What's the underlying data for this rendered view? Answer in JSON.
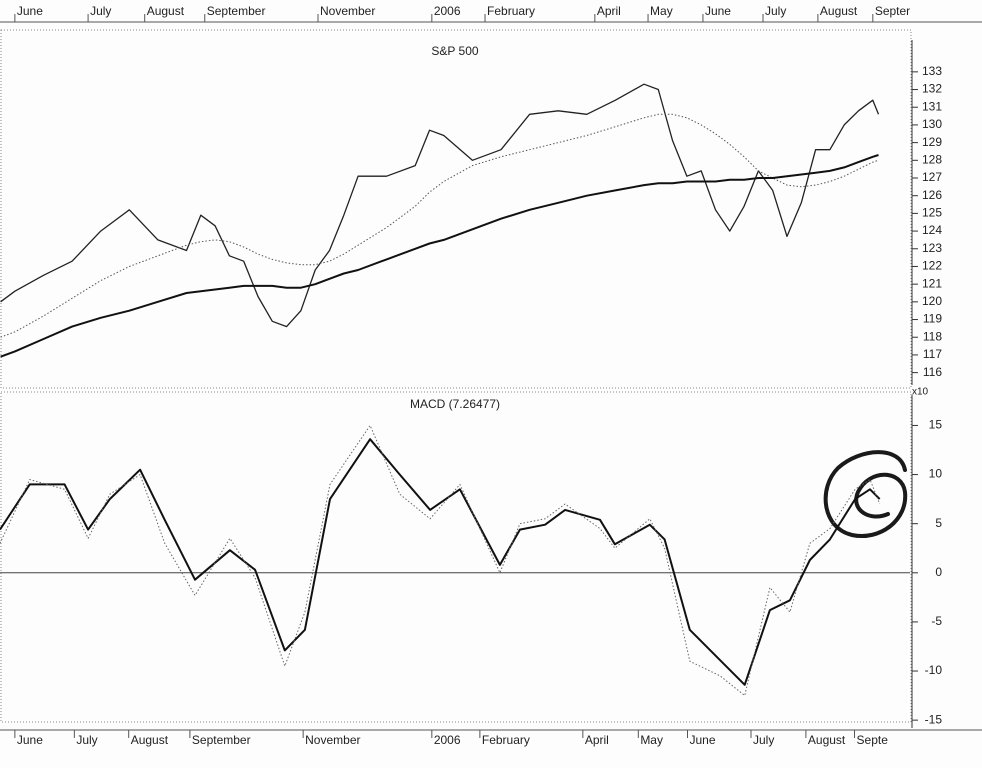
{
  "chart_data": [
    {
      "type": "line",
      "title": "S&P 500",
      "xaxis": "top",
      "x": [
        -0.25,
        0,
        0.5,
        1,
        1.5,
        2,
        2.5,
        3,
        3.25,
        3.5,
        3.75,
        4,
        4.25,
        4.5,
        4.75,
        5,
        5.25,
        5.5,
        5.75,
        6,
        6.5,
        7,
        7.25,
        7.5,
        8,
        8.5,
        9,
        9.5,
        10,
        10.5,
        11,
        11.25,
        11.5,
        11.75,
        12,
        12.25,
        12.5,
        12.75,
        13,
        13.25,
        13.5,
        13.75,
        14,
        14.25,
        14.5,
        14.75,
        15,
        15.1
      ],
      "series": [
        {
          "color": "#222222",
          "style": "solid",
          "width": 1.3,
          "values": [
            120.0,
            120.6,
            121.5,
            122.3,
            124,
            125.2,
            123.5,
            122.9,
            124.9,
            124.3,
            122.6,
            122.3,
            120.3,
            118.9,
            118.6,
            119.5,
            121.8,
            122.9,
            124.9,
            127.1,
            127.1,
            127.7,
            129.7,
            129.4,
            128,
            128.6,
            130.6,
            130.8,
            130.6,
            131.4,
            132.3,
            132,
            129.1,
            127.1,
            127.4,
            125.2,
            124,
            125.4,
            127.4,
            126.3,
            123.7,
            125.6,
            128.6,
            128.6,
            130,
            130.8,
            131.4,
            130.6
          ]
        },
        {
          "color": "#555555",
          "style": "dotted",
          "width": 1,
          "values": [
            118.0,
            118.3,
            119.2,
            120.2,
            121.2,
            122.0,
            122.6,
            123.2,
            123.4,
            123.5,
            123.4,
            123.1,
            122.7,
            122.4,
            122.2,
            122.1,
            122.1,
            122.3,
            122.7,
            123.2,
            124.2,
            125.4,
            126.2,
            126.8,
            127.7,
            128.2,
            128.6,
            129.0,
            129.4,
            129.9,
            130.4,
            130.6,
            130.6,
            130.4,
            130.0,
            129.5,
            128.9,
            128.2,
            127.4,
            127.0,
            126.6,
            126.5,
            126.6,
            126.8,
            127.1,
            127.5,
            127.9,
            128.0
          ]
        },
        {
          "color": "#111111",
          "style": "solid",
          "width": 2,
          "values": [
            116.9,
            117.2,
            117.9,
            118.6,
            119.1,
            119.5,
            120.0,
            120.5,
            120.6,
            120.7,
            120.8,
            120.9,
            120.9,
            120.9,
            120.8,
            120.8,
            121.0,
            121.3,
            121.6,
            121.8,
            122.4,
            123.0,
            123.3,
            123.5,
            124.1,
            124.7,
            125.2,
            125.6,
            126.0,
            126.3,
            126.6,
            126.7,
            126.7,
            126.8,
            126.8,
            126.8,
            126.9,
            126.9,
            127.0,
            127.0,
            127.1,
            127.2,
            127.3,
            127.4,
            127.6,
            127.9,
            128.2,
            128.3
          ]
        }
      ],
      "xlim": [
        -0.26,
        15.65
      ],
      "xticks": [
        {
          "value": 0,
          "label": "June"
        },
        {
          "value": 1.28,
          "label": "July"
        },
        {
          "value": 2.27,
          "label": "August"
        },
        {
          "value": 3.32,
          "label": "September"
        },
        {
          "value": 5.3,
          "label": "November"
        },
        {
          "value": 7.29,
          "label": "2006"
        },
        {
          "value": 8.22,
          "label": "February"
        },
        {
          "value": 10.14,
          "label": "April"
        },
        {
          "value": 11.07,
          "label": "May"
        },
        {
          "value": 12.03,
          "label": "June"
        },
        {
          "value": 13.08,
          "label": "July"
        },
        {
          "value": 14.04,
          "label": "August"
        },
        {
          "value": 15.0,
          "label": "Septer"
        }
      ],
      "ylim": [
        115.3,
        134.8
      ],
      "yticks": [
        116,
        117,
        118,
        119,
        120,
        121,
        122,
        123,
        124,
        125,
        126,
        127,
        128,
        129,
        130,
        131,
        132,
        133
      ]
    },
    {
      "type": "line",
      "title": "MACD (7.26477)",
      "xaxis": "bottom",
      "y_axis_note": "x10",
      "zero_line": true,
      "x": [
        -0.26,
        0.26,
        0.87,
        1.28,
        1.66,
        2.19,
        2.62,
        3.15,
        3.76,
        4.2,
        4.72,
        5.07,
        5.51,
        6.21,
        6.73,
        7.26,
        7.78,
        8.48,
        8.83,
        9.27,
        9.62,
        10.23,
        10.49,
        11.1,
        11.36,
        11.8,
        12.33,
        12.76,
        13.2,
        13.55,
        13.9,
        14.25,
        14.69,
        14.95,
        15.12
      ],
      "series": [
        {
          "color": "#111111",
          "style": "solid",
          "width": 2,
          "values": [
            4.4,
            9,
            9,
            4.4,
            7.5,
            10.5,
            5.4,
            -0.7,
            2.3,
            0.3,
            -7.9,
            -5.8,
            7.5,
            13.6,
            10,
            6.4,
            8.5,
            0.8,
            4.4,
            4.9,
            6.4,
            5.4,
            2.9,
            4.9,
            3.4,
            -5.8,
            -8.9,
            -11.4,
            -3.8,
            -2.8,
            1.3,
            3.4,
            7.5,
            8.5,
            7.5
          ]
        },
        {
          "color": "#666666",
          "style": "dotted",
          "width": 1,
          "values": [
            3,
            9.5,
            8.5,
            3.5,
            8,
            10,
            3,
            -2.3,
            3.5,
            -0.5,
            -9.5,
            -4,
            9,
            15,
            8,
            5.5,
            9,
            0,
            5,
            5.5,
            7,
            4.5,
            2.5,
            5.5,
            2.5,
            -9,
            -10.5,
            -12.5,
            -1.5,
            -4,
            3,
            4.5,
            8.5,
            9.5,
            7
          ]
        }
      ],
      "xlim": [
        -0.26,
        15.65
      ],
      "xticks": [
        {
          "value": 0,
          "label": "June"
        },
        {
          "value": 1.04,
          "label": "July"
        },
        {
          "value": 1.99,
          "label": "August"
        },
        {
          "value": 3.06,
          "label": "September"
        },
        {
          "value": 5.04,
          "label": "November"
        },
        {
          "value": 7.29,
          "label": "2006"
        },
        {
          "value": 8.13,
          "label": "February"
        },
        {
          "value": 9.93,
          "label": "April"
        },
        {
          "value": 10.9,
          "label": "May"
        },
        {
          "value": 11.76,
          "label": "June"
        },
        {
          "value": 12.87,
          "label": "July"
        },
        {
          "value": 13.83,
          "label": "August"
        },
        {
          "value": 14.68,
          "label": "Septe"
        }
      ],
      "ylim": [
        -15.8,
        18.1
      ],
      "yticks": [
        -15,
        -10,
        -5,
        0,
        5,
        10,
        15
      ]
    }
  ]
}
